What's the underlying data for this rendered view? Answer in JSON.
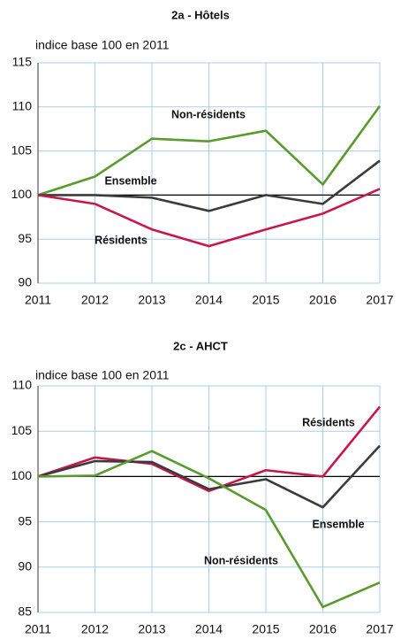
{
  "chart_data": [
    {
      "type": "line",
      "title": "2a - Hôtels",
      "y_label": "indice base 100 en 2011",
      "x": [
        2011,
        2012,
        2013,
        2014,
        2015,
        2016,
        2017
      ],
      "xlim": [
        2011,
        2017
      ],
      "xticks": [
        2011,
        2012,
        2013,
        2014,
        2015,
        2016,
        2017
      ],
      "ylim": [
        90,
        115
      ],
      "yticks": [
        90,
        95,
        100,
        105,
        110,
        115
      ],
      "grid": true,
      "reference_line": 100,
      "series": [
        {
          "name": "Non-résidents",
          "color": "#5b9a2f",
          "values": [
            100,
            102.1,
            106.4,
            106.1,
            107.3,
            101.2,
            110.1
          ]
        },
        {
          "name": "Ensemble",
          "color": "#3b3b3b",
          "values": [
            100,
            100,
            99.7,
            98.2,
            100,
            99,
            103.9
          ]
        },
        {
          "name": "Résidents",
          "color": "#c8174b",
          "values": [
            100,
            99,
            96.1,
            94.2,
            96.1,
            97.9,
            100.7
          ]
        }
      ]
    },
    {
      "type": "line",
      "title": "2c - AHCT",
      "y_label": "indice base 100 en 2011",
      "x": [
        2011,
        2012,
        2013,
        2014,
        2015,
        2016,
        2017
      ],
      "xlim": [
        2011,
        2017
      ],
      "xticks": [
        2011,
        2012,
        2013,
        2014,
        2015,
        2016,
        2017
      ],
      "ylim": [
        85,
        110
      ],
      "yticks": [
        85,
        90,
        95,
        100,
        105,
        110
      ],
      "grid": true,
      "reference_line": 100,
      "series": [
        {
          "name": "Résidents",
          "color": "#c8174b",
          "values": [
            100,
            102.1,
            101.4,
            98.4,
            100.7,
            100,
            107.7
          ]
        },
        {
          "name": "Ensemble",
          "color": "#3b3b3b",
          "values": [
            100,
            101.7,
            101.6,
            98.6,
            99.7,
            96.6,
            103.4
          ]
        },
        {
          "name": "Non-résidents",
          "color": "#5b9a2f",
          "values": [
            100,
            100.1,
            102.8,
            99.8,
            96.3,
            85.6,
            88.3
          ]
        }
      ]
    }
  ]
}
